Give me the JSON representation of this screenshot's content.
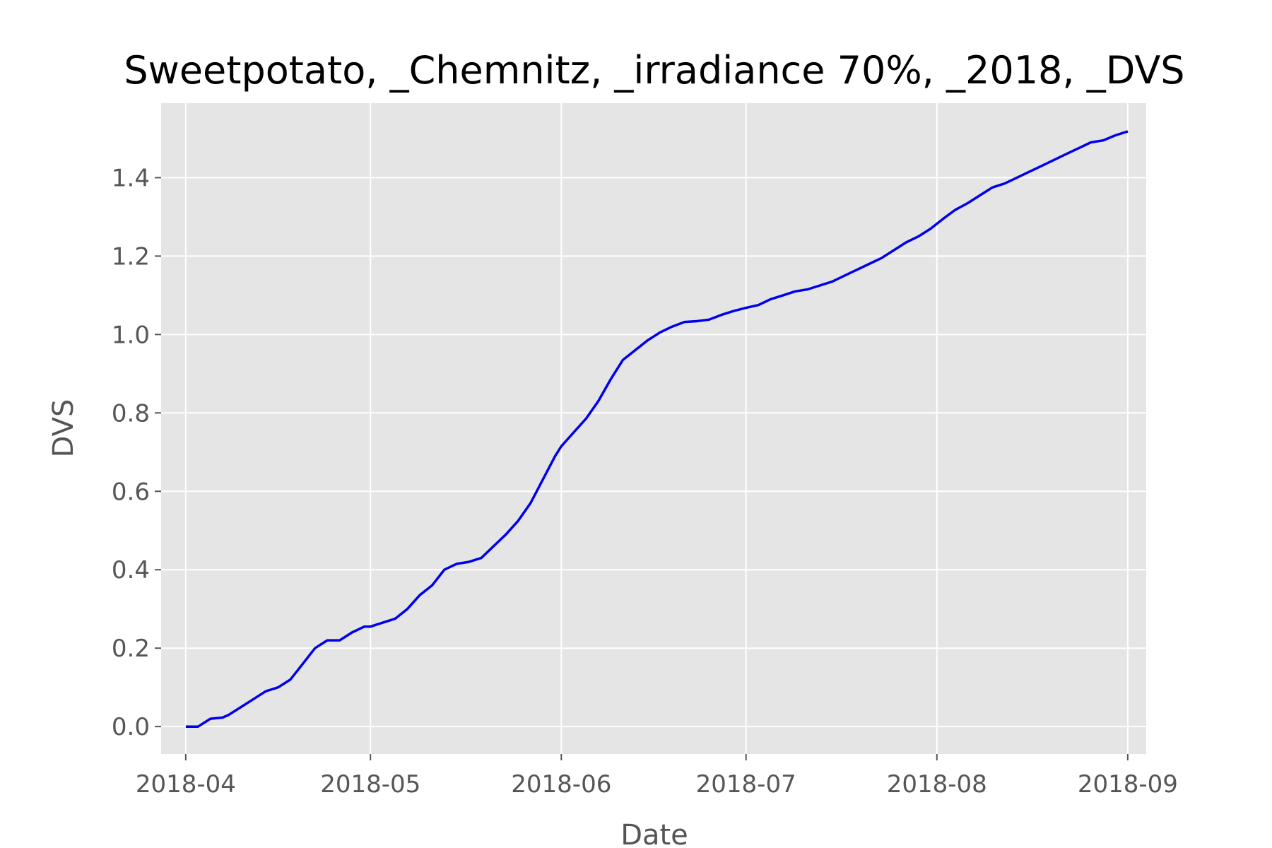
{
  "chart_data": {
    "type": "line",
    "title": "Sweetpotato, _Chemnitz, _irradiance 70%, _2018, _DVS",
    "xlabel": "Date",
    "ylabel": "DVS",
    "x_axis": "date",
    "xlim": [
      "2018-03-28",
      "2018-09-04"
    ],
    "ylim": [
      -0.07,
      1.59
    ],
    "grid": true,
    "legend": "none",
    "x_ticks": [
      "2018-04-01",
      "2018-05-01",
      "2018-06-01",
      "2018-07-01",
      "2018-08-01",
      "2018-09-01"
    ],
    "x_tick_labels": [
      "2018-04",
      "2018-05",
      "2018-06",
      "2018-07",
      "2018-08",
      "2018-09"
    ],
    "y_ticks": [
      0.0,
      0.2,
      0.4,
      0.6,
      0.8,
      1.0,
      1.2,
      1.4
    ],
    "y_tick_labels": [
      "0.0",
      "0.2",
      "0.4",
      "0.6",
      "0.8",
      "1.0",
      "1.2",
      "1.4"
    ],
    "colors": {
      "line": "#0000ee",
      "plot_bg": "#e5e5e5",
      "grid": "#ffffff"
    },
    "series": [
      {
        "x": [
          "2018-04-01",
          "2018-04-03",
          "2018-04-05",
          "2018-04-07",
          "2018-04-08",
          "2018-04-10",
          "2018-04-12",
          "2018-04-14",
          "2018-04-16",
          "2018-04-18",
          "2018-04-20",
          "2018-04-22",
          "2018-04-24",
          "2018-04-26",
          "2018-04-28",
          "2018-04-30",
          "2018-05-01",
          "2018-05-03",
          "2018-05-05",
          "2018-05-07",
          "2018-05-09",
          "2018-05-11",
          "2018-05-13",
          "2018-05-15",
          "2018-05-17",
          "2018-05-19",
          "2018-05-21",
          "2018-05-23",
          "2018-05-25",
          "2018-05-27",
          "2018-05-29",
          "2018-05-31",
          "2018-06-01",
          "2018-06-03",
          "2018-06-05",
          "2018-06-07",
          "2018-06-09",
          "2018-06-11",
          "2018-06-13",
          "2018-06-15",
          "2018-06-17",
          "2018-06-19",
          "2018-06-21",
          "2018-06-23",
          "2018-06-25",
          "2018-06-27",
          "2018-06-29",
          "2018-07-01",
          "2018-07-03",
          "2018-07-05",
          "2018-07-07",
          "2018-07-09",
          "2018-07-11",
          "2018-07-13",
          "2018-07-15",
          "2018-07-17",
          "2018-07-19",
          "2018-07-21",
          "2018-07-23",
          "2018-07-25",
          "2018-07-27",
          "2018-07-29",
          "2018-07-31",
          "2018-08-02",
          "2018-08-04",
          "2018-08-06",
          "2018-08-08",
          "2018-08-10",
          "2018-08-12",
          "2018-08-14",
          "2018-08-16",
          "2018-08-18",
          "2018-08-20",
          "2018-08-22",
          "2018-08-24",
          "2018-08-26",
          "2018-08-28",
          "2018-08-30",
          "2018-09-01"
        ],
        "y": [
          0.0,
          0.0,
          0.02,
          0.023,
          0.03,
          0.05,
          0.07,
          0.09,
          0.1,
          0.12,
          0.16,
          0.2,
          0.22,
          0.22,
          0.24,
          0.255,
          0.255,
          0.265,
          0.275,
          0.3,
          0.335,
          0.36,
          0.4,
          0.415,
          0.42,
          0.43,
          0.46,
          0.49,
          0.525,
          0.57,
          0.63,
          0.69,
          0.715,
          0.75,
          0.785,
          0.83,
          0.885,
          0.935,
          0.96,
          0.985,
          1.005,
          1.02,
          1.032,
          1.034,
          1.038,
          1.05,
          1.06,
          1.068,
          1.075,
          1.09,
          1.1,
          1.11,
          1.115,
          1.125,
          1.135,
          1.15,
          1.165,
          1.18,
          1.195,
          1.215,
          1.235,
          1.25,
          1.27,
          1.295,
          1.318,
          1.335,
          1.355,
          1.375,
          1.385,
          1.4,
          1.415,
          1.43,
          1.445,
          1.46,
          1.475,
          1.49,
          1.495,
          1.508,
          1.518
        ]
      }
    ]
  }
}
